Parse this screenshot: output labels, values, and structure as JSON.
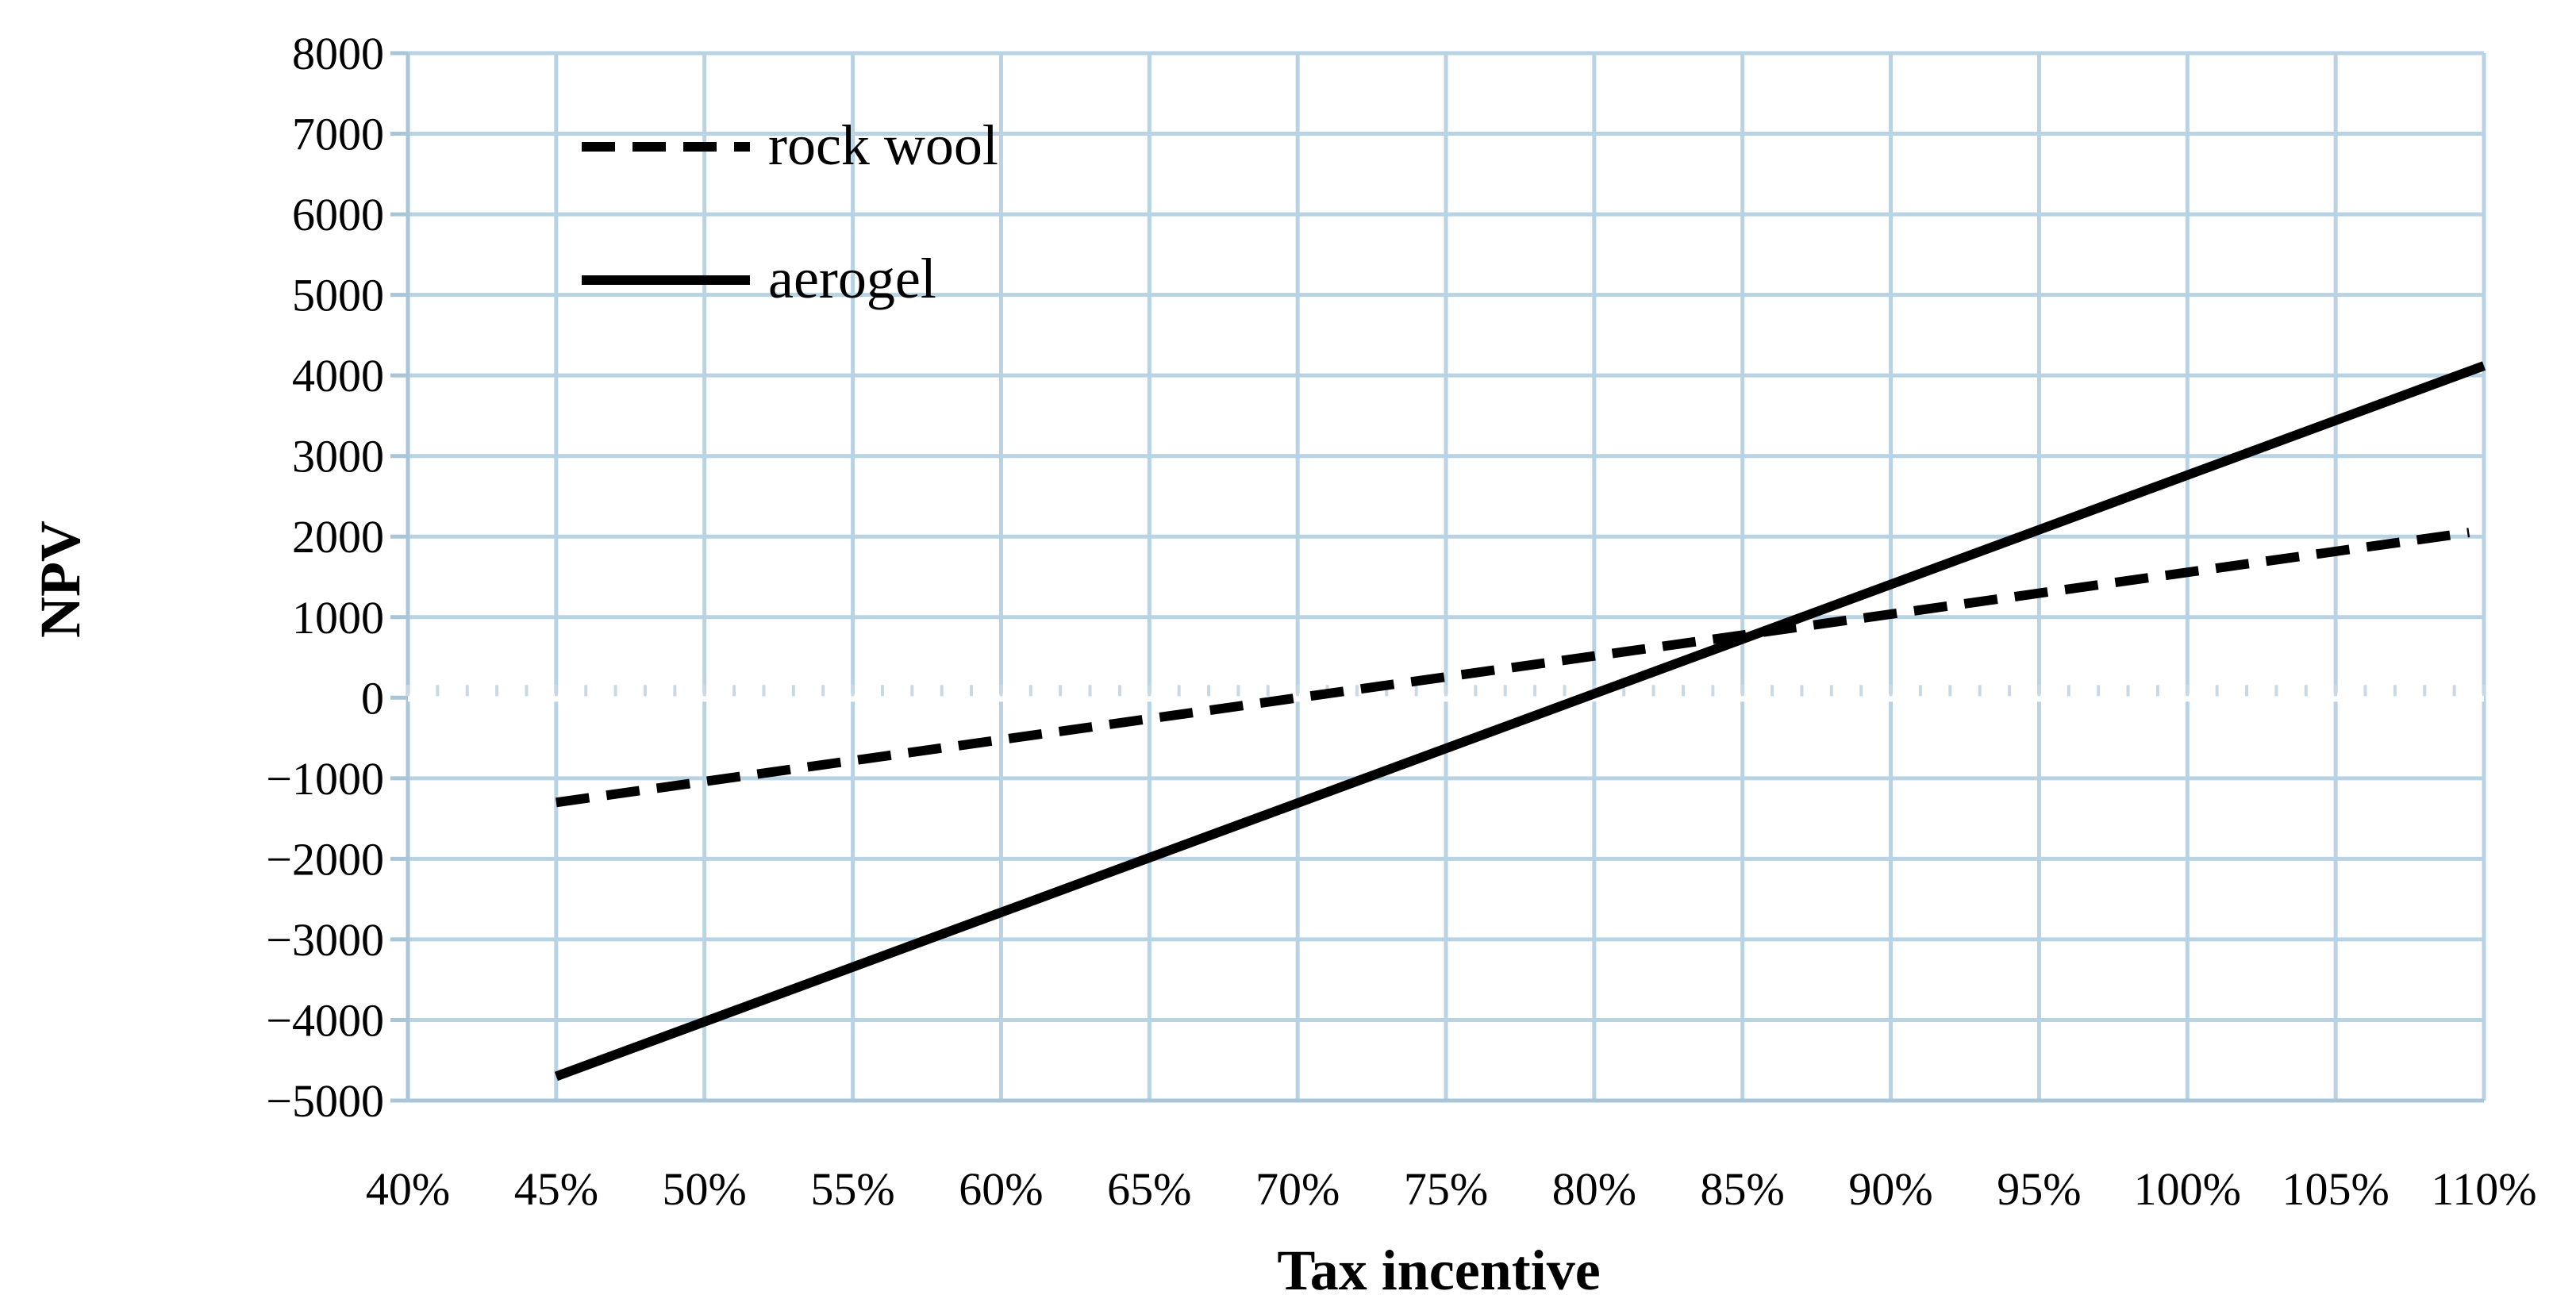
{
  "chart_data": {
    "type": "line",
    "xlabel": "Tax incentive",
    "ylabel": "NPV",
    "x": [
      0.4,
      0.45,
      0.5,
      0.55,
      0.6,
      0.65,
      0.7,
      0.75,
      0.8,
      0.85,
      0.9,
      0.95,
      1.0,
      1.05,
      1.1
    ],
    "x_tick_labels": [
      "40%",
      "45%",
      "50%",
      "55%",
      "60%",
      "65%",
      "70%",
      "75%",
      "80%",
      "85%",
      "90%",
      "95%",
      "100%",
      "105%",
      "110%"
    ],
    "y_ticks": [
      8000,
      7000,
      6000,
      5000,
      4000,
      3000,
      2000,
      1000,
      0,
      -1000,
      -2000,
      -3000,
      -4000,
      -5000
    ],
    "xlim": [
      0.4,
      1.1
    ],
    "ylim": [
      -5000,
      8000
    ],
    "grid": true,
    "legend_position": "top-left",
    "series": [
      {
        "name": "rock wool",
        "style": "dashed",
        "color": "#000000",
        "points": [
          [
            0.45,
            -1300
          ],
          [
            1.095,
            2050
          ]
        ]
      },
      {
        "name": "aerogel",
        "style": "solid",
        "color": "#000000",
        "points": [
          [
            0.45,
            -4700
          ],
          [
            1.1,
            4120
          ]
        ]
      }
    ]
  }
}
